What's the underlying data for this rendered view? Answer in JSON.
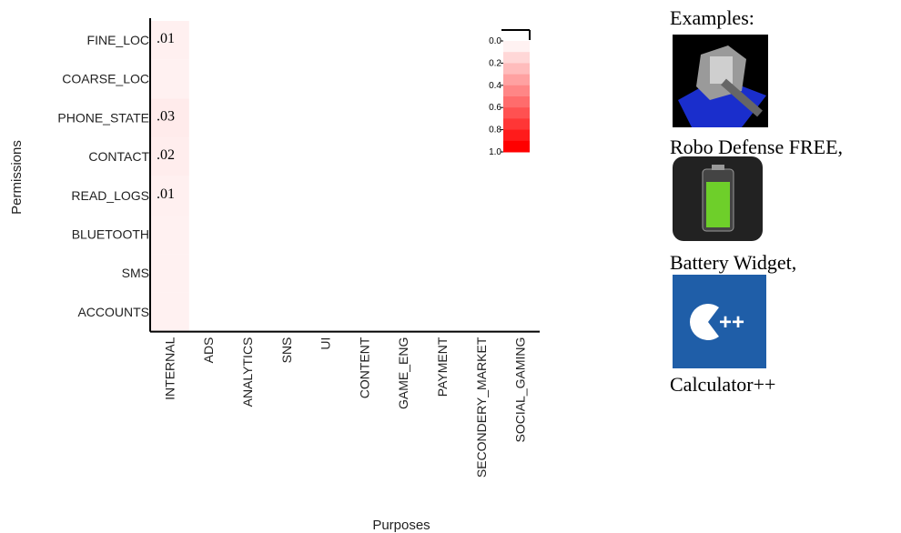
{
  "chart_data": {
    "type": "heatmap",
    "x_label": "Purposes",
    "y_label": "Permissions",
    "x": [
      "INTERNAL",
      "ADS",
      "ANALYTICS",
      "SNS",
      "UI",
      "CONTENT",
      "GAME_ENG",
      "PAYMENT",
      "SECONDERY_MARKET",
      "SOCIAL_GAMING"
    ],
    "y": [
      "FINE_LOC",
      "COARSE_LOC",
      "PHONE_STATE",
      "CONTACT",
      "READ_LOGS",
      "BLUETOOTH",
      "SMS",
      "ACCOUNTS"
    ],
    "values": [
      [
        0.01,
        null,
        null,
        null,
        null,
        null,
        null,
        null,
        null,
        null
      ],
      [
        0.004,
        null,
        null,
        null,
        null,
        null,
        null,
        null,
        null,
        null
      ],
      [
        0.03,
        null,
        null,
        null,
        null,
        null,
        null,
        null,
        null,
        null
      ],
      [
        0.02,
        null,
        null,
        null,
        null,
        null,
        null,
        null,
        null,
        null
      ],
      [
        0.01,
        null,
        null,
        null,
        null,
        null,
        null,
        null,
        null,
        null
      ],
      [
        0.004,
        null,
        null,
        null,
        null,
        null,
        null,
        null,
        null,
        null
      ],
      [
        0.004,
        null,
        null,
        null,
        null,
        null,
        null,
        null,
        null,
        null
      ],
      [
        0.004,
        null,
        null,
        null,
        null,
        null,
        null,
        null,
        null,
        null
      ]
    ],
    "value_labels": [
      [
        ".01",
        null,
        null,
        null,
        null,
        null,
        null,
        null,
        null,
        null
      ],
      [
        null,
        null,
        null,
        null,
        null,
        null,
        null,
        null,
        null,
        null
      ],
      [
        ".03",
        null,
        null,
        null,
        null,
        null,
        null,
        null,
        null,
        null
      ],
      [
        ".02",
        null,
        null,
        null,
        null,
        null,
        null,
        null,
        null,
        null
      ],
      [
        ".01",
        null,
        null,
        null,
        null,
        null,
        null,
        null,
        null,
        null
      ],
      [
        null,
        null,
        null,
        null,
        null,
        null,
        null,
        null,
        null,
        null
      ],
      [
        null,
        null,
        null,
        null,
        null,
        null,
        null,
        null,
        null,
        null
      ],
      [
        null,
        null,
        null,
        null,
        null,
        null,
        null,
        null,
        null,
        null
      ]
    ],
    "clim": [
      0,
      1
    ],
    "cticks": [
      {
        "value": 0,
        "label": "0.0"
      },
      {
        "value": 0.2,
        "label": "0.2"
      },
      {
        "value": 0.4,
        "label": "0.4"
      },
      {
        "value": 0.6,
        "label": "0.6"
      },
      {
        "value": 0.8,
        "label": "0.8"
      },
      {
        "value": 1,
        "label": "1.0"
      }
    ],
    "colors": [
      "#fff2f2",
      "#ff0000"
    ]
  },
  "examples": {
    "title": "Examples:",
    "apps": [
      "Robo Defense FREE,",
      "Battery Widget,",
      "Calculator++"
    ]
  }
}
